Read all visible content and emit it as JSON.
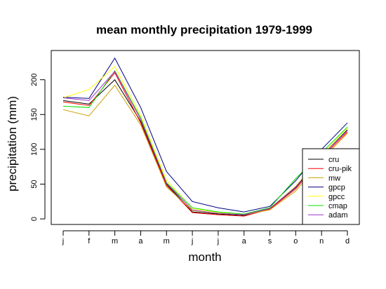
{
  "chart_data": {
    "type": "line",
    "title": "mean monthly precipitation 1979-1999",
    "xlabel": "month",
    "ylabel": "precipitation (mm)",
    "categories": [
      "j",
      "f",
      "m",
      "a",
      "m",
      "j",
      "j",
      "a",
      "s",
      "o",
      "n",
      "d"
    ],
    "yticks": [
      0,
      50,
      100,
      150,
      200
    ],
    "ylim": [
      -8,
      242
    ],
    "grid": false,
    "legend_position": "bottom-right",
    "series": [
      {
        "name": "cru",
        "color": "#000000",
        "values": [
          170,
          165,
          200,
          140,
          50,
          10,
          7,
          5,
          15,
          45,
          90,
          128
        ]
      },
      {
        "name": "cru-pik",
        "color": "#ff0000",
        "values": [
          168,
          163,
          210,
          138,
          48,
          9,
          6,
          4,
          14,
          43,
          88,
          125
        ]
      },
      {
        "name": "mw",
        "color": "#c8a000",
        "values": [
          157,
          148,
          192,
          135,
          46,
          12,
          8,
          6,
          13,
          40,
          85,
          123
        ]
      },
      {
        "name": "gpcp",
        "color": "#000080",
        "values": [
          175,
          173,
          231,
          160,
          68,
          25,
          16,
          10,
          18,
          55,
          100,
          138
        ]
      },
      {
        "name": "gpcc",
        "color": "#ffff00",
        "values": [
          174,
          186,
          219,
          148,
          55,
          15,
          9,
          6,
          15,
          47,
          92,
          130
        ]
      },
      {
        "name": "cmap",
        "color": "#00e000",
        "values": [
          162,
          160,
          213,
          145,
          52,
          16,
          10,
          7,
          16,
          58,
          95,
          132
        ]
      },
      {
        "name": "adam",
        "color": "#9932cc",
        "values": [
          174,
          170,
          212,
          143,
          51,
          13,
          8,
          6,
          15,
          46,
          90,
          127
        ]
      }
    ]
  }
}
